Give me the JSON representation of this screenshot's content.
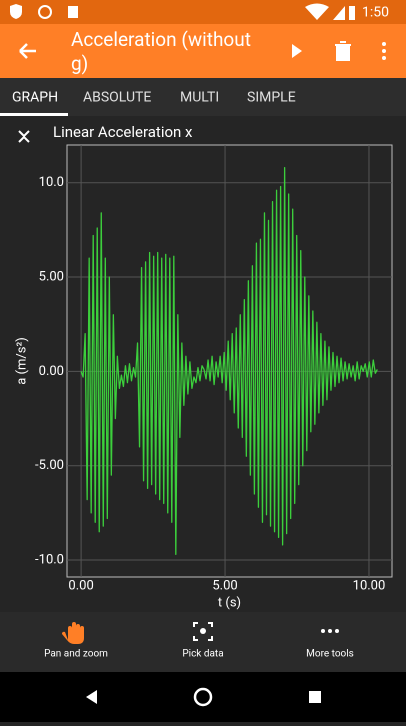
{
  "status_bar": {
    "time": "1:50"
  },
  "app_bar": {
    "title_line1": "Acceleration (without",
    "title_line2": "g)"
  },
  "tabs": [
    "GRAPH",
    "ABSOLUTE",
    "MULTI",
    "SIMPLE"
  ],
  "chart_data": {
    "type": "line",
    "title": "Linear Acceleration x",
    "x_label": "t (s)",
    "y_label": "a (m/s²)",
    "color": "#3ccf3c",
    "grid": true,
    "xlim": [
      -0.49,
      10.8
    ],
    "ylim": [
      -10.9,
      12.0
    ],
    "xticks": [
      {
        "value": 0,
        "label": "0.00"
      },
      {
        "value": 5,
        "label": "5.00"
      },
      {
        "value": 10,
        "label": "10.00"
      }
    ],
    "yticks": [
      {
        "value": -10,
        "label": "-10.0"
      },
      {
        "value": -5,
        "label": "-5.00"
      },
      {
        "value": 0,
        "label": "0.00"
      },
      {
        "value": 5,
        "label": "5.00"
      },
      {
        "value": 10,
        "label": "10.0"
      }
    ],
    "x": [
      0,
      0.07,
      0.14,
      0.21,
      0.28,
      0.35,
      0.42,
      0.49,
      0.56,
      0.63,
      0.7,
      0.77,
      0.84,
      0.91,
      0.98,
      1.05,
      1.12,
      1.19,
      1.26,
      1.33,
      1.4,
      1.47,
      1.54,
      1.61,
      1.68,
      1.75,
      1.82,
      1.89,
      1.96,
      2.03,
      2.1,
      2.17,
      2.24,
      2.31,
      2.38,
      2.45,
      2.52,
      2.59,
      2.66,
      2.73,
      2.8,
      2.87,
      2.94,
      3.01,
      3.08,
      3.15,
      3.22,
      3.29,
      3.36,
      3.43,
      3.5,
      3.57,
      3.64,
      3.71,
      3.78,
      3.85,
      3.92,
      3.99,
      4.06,
      4.13,
      4.2,
      4.27,
      4.34,
      4.41,
      4.48,
      4.55,
      4.62,
      4.69,
      4.76,
      4.83,
      4.9,
      4.97,
      5.04,
      5.11,
      5.18,
      5.25,
      5.32,
      5.39,
      5.46,
      5.53,
      5.6,
      5.67,
      5.74,
      5.81,
      5.88,
      5.95,
      6.02,
      6.09,
      6.16,
      6.23,
      6.3,
      6.37,
      6.44,
      6.51,
      6.58,
      6.65,
      6.72,
      6.79,
      6.86,
      6.93,
      7.0,
      7.07,
      7.14,
      7.21,
      7.28,
      7.35,
      7.42,
      7.49,
      7.56,
      7.63,
      7.7,
      7.77,
      7.84,
      7.91,
      7.98,
      8.05,
      8.12,
      8.19,
      8.26,
      8.33,
      8.4,
      8.47,
      8.54,
      8.61,
      8.68,
      8.75,
      8.82,
      8.89,
      8.96,
      9.03,
      9.1,
      9.17,
      9.24,
      9.31,
      9.38,
      9.45,
      9.52,
      9.59,
      9.66,
      9.73,
      9.8,
      9.87,
      9.94,
      10.01,
      10.08,
      10.15,
      10.22,
      10.29
    ],
    "values": [
      0,
      -0.3,
      2.0,
      -6.8,
      6.0,
      -7.5,
      7.2,
      -8.0,
      7.6,
      -8.5,
      8.4,
      -8.2,
      6.0,
      -7.8,
      5.0,
      -5.5,
      3.0,
      -2.5,
      0.8,
      -0.9,
      -0.2,
      -0.8,
      0.3,
      -0.6,
      0.4,
      -0.5,
      0.2,
      -0.3,
      1.5,
      -4.0,
      5.5,
      -5.8,
      5.8,
      -6.2,
      6.3,
      -6.0,
      6.1,
      -6.5,
      6.3,
      -6.8,
      6.0,
      -7.0,
      6.2,
      -7.5,
      6.0,
      -8.0,
      6.1,
      -9.7,
      3.0,
      -3.5,
      1.5,
      -1.8,
      0.8,
      -1.2,
      0.5,
      -0.9,
      -0.3,
      -0.6,
      0.2,
      -0.5,
      0.3,
      0.1,
      -0.4,
      0.6,
      -0.5,
      0.8,
      -0.7,
      0.5,
      -0.3,
      0.8,
      -0.6,
      1.0,
      -1.0,
      1.6,
      -1.5,
      2.0,
      -2.2,
      2.3,
      -3.0,
      3.0,
      -3.5,
      3.8,
      -4.5,
      4.8,
      -5.5,
      5.6,
      -6.5,
      6.8,
      -7.2,
      7.0,
      -8.0,
      8.4,
      -7.6,
      8.0,
      -8.2,
      9.0,
      -8.5,
      9.6,
      -8.8,
      9.8,
      -9.2,
      10.8,
      -8.6,
      9.4,
      -7.8,
      8.6,
      -7.0,
      7.2,
      -6.0,
      6.4,
      -5.0,
      5.0,
      -4.2,
      4.0,
      -3.2,
      3.2,
      -2.8,
      2.6,
      -2.2,
      2.0,
      -1.8,
      1.6,
      -1.5,
      1.3,
      -1.0,
      1.0,
      -0.8,
      0.8,
      -0.6,
      0.7,
      -0.5,
      0.5,
      -0.4,
      0.4,
      -0.3,
      0.3,
      -0.5,
      0.5,
      -0.4,
      0.3,
      0,
      0.4,
      -0.3,
      0.5,
      -0.3,
      0.6,
      -0.1,
      0.1
    ]
  },
  "toolbar": [
    "Pan and zoom",
    "Pick data",
    "More tools"
  ]
}
